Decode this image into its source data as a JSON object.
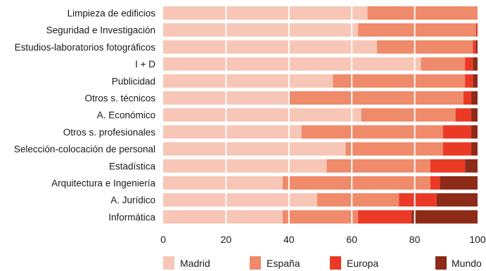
{
  "chart_data": {
    "type": "bar",
    "stacked": true,
    "orientation": "horizontal",
    "categories": [
      "Limpieza de edificios",
      "Seguridad e Investigación",
      "Estudios-laboratorios fotográficos",
      "I + D",
      "Publicidad",
      "Otros s. técnicos",
      "A. Económico",
      "Otros s. profesionales",
      "Selección-colocación de personal",
      "Estadística",
      "Arquitectura e Ingeniería",
      "A. Jurídico",
      "Informática"
    ],
    "series": [
      {
        "name": "Madrid",
        "color": "#f7c6b6",
        "values": [
          65,
          62,
          68,
          82,
          54,
          40,
          63,
          44,
          58,
          52,
          38,
          49,
          38
        ]
      },
      {
        "name": "España",
        "color": "#ef8a6a",
        "values": [
          35,
          37.5,
          30.5,
          14,
          42,
          55.5,
          30,
          45,
          31,
          33,
          47,
          26,
          24
        ]
      },
      {
        "name": "Europa",
        "color": "#ea3a26",
        "values": [
          0,
          0.5,
          1,
          2.5,
          2.5,
          2.5,
          5,
          9,
          9,
          11,
          3,
          12,
          17
        ]
      },
      {
        "name": "Mundo",
        "color": "#8e2a18",
        "values": [
          0,
          0,
          0.5,
          1.5,
          1.5,
          2,
          2,
          2,
          2,
          4,
          12,
          13,
          21
        ]
      }
    ],
    "xlim": [
      0,
      100
    ],
    "xticks": [
      0,
      20,
      40,
      60,
      80,
      100
    ],
    "grid": true,
    "legend_position": "bottom"
  }
}
